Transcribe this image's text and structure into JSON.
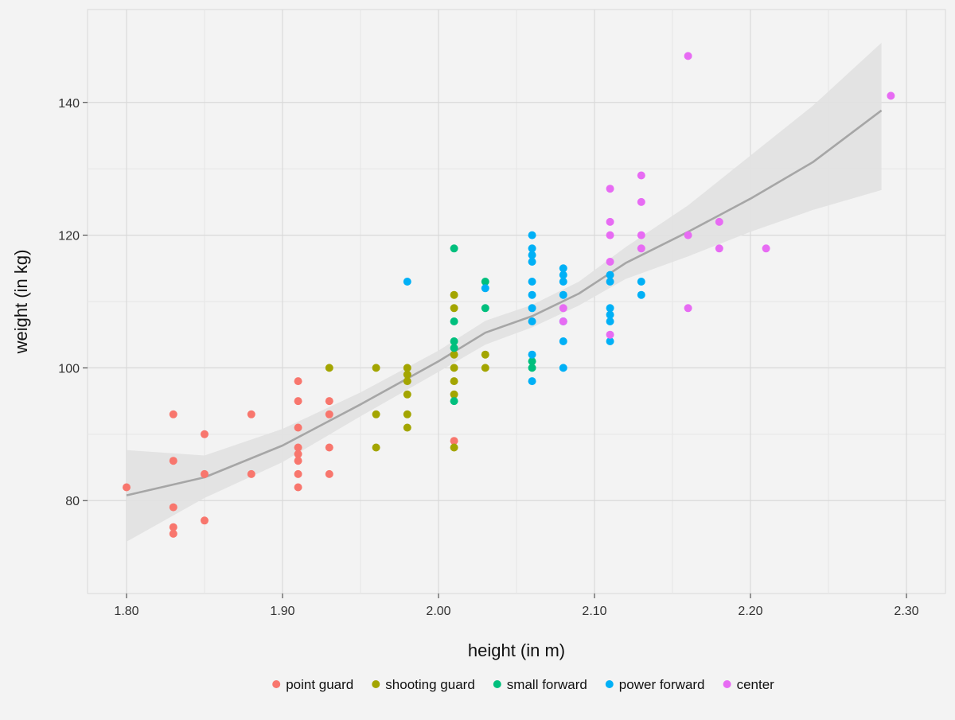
{
  "chart_data": {
    "type": "scatter",
    "title": "",
    "xlabel": "height (in m)",
    "ylabel": "weight (in kg)",
    "xlim": [
      1.775,
      2.325
    ],
    "ylim": [
      66,
      154
    ],
    "x_ticks": [
      {
        "value": 1.8,
        "label": "1.80"
      },
      {
        "value": 1.9,
        "label": "1.90"
      },
      {
        "value": 2.0,
        "label": "2.00"
      },
      {
        "value": 2.1,
        "label": "2.10"
      },
      {
        "value": 2.2,
        "label": "2.20"
      },
      {
        "value": 2.3,
        "label": "2.30"
      }
    ],
    "y_ticks": [
      {
        "value": 80,
        "label": "80"
      },
      {
        "value": 100,
        "label": "100"
      },
      {
        "value": 120,
        "label": "120"
      },
      {
        "value": 140,
        "label": "140"
      }
    ],
    "grid": true,
    "legend_position": "bottom",
    "series": [
      {
        "name": "point guard",
        "color": "#F8766D",
        "points": [
          [
            1.8,
            82
          ],
          [
            1.83,
            93
          ],
          [
            1.83,
            86
          ],
          [
            1.83,
            79
          ],
          [
            1.83,
            76
          ],
          [
            1.83,
            75
          ],
          [
            1.85,
            90
          ],
          [
            1.85,
            84
          ],
          [
            1.85,
            77
          ],
          [
            1.88,
            93
          ],
          [
            1.88,
            84
          ],
          [
            1.91,
            98
          ],
          [
            1.91,
            95
          ],
          [
            1.91,
            91
          ],
          [
            1.91,
            88
          ],
          [
            1.91,
            87
          ],
          [
            1.91,
            86
          ],
          [
            1.91,
            84
          ],
          [
            1.91,
            82
          ],
          [
            1.93,
            95
          ],
          [
            1.93,
            93
          ],
          [
            1.93,
            88
          ],
          [
            1.93,
            84
          ],
          [
            2.01,
            89
          ]
        ]
      },
      {
        "name": "shooting guard",
        "color": "#A3A500",
        "points": [
          [
            1.93,
            100
          ],
          [
            1.96,
            100
          ],
          [
            1.96,
            93
          ],
          [
            1.96,
            88
          ],
          [
            1.98,
            100
          ],
          [
            1.98,
            99
          ],
          [
            1.98,
            98
          ],
          [
            1.98,
            96
          ],
          [
            1.98,
            93
          ],
          [
            1.98,
            91
          ],
          [
            2.01,
            111
          ],
          [
            2.01,
            109
          ],
          [
            2.01,
            102
          ],
          [
            2.01,
            100
          ],
          [
            2.01,
            98
          ],
          [
            2.01,
            96
          ],
          [
            2.01,
            88
          ],
          [
            2.03,
            102
          ],
          [
            2.03,
            100
          ]
        ]
      },
      {
        "name": "small forward",
        "color": "#00BF7D",
        "points": [
          [
            2.01,
            118
          ],
          [
            2.01,
            107
          ],
          [
            2.01,
            104
          ],
          [
            2.01,
            103
          ],
          [
            2.01,
            95
          ],
          [
            2.03,
            113
          ],
          [
            2.03,
            109
          ],
          [
            2.06,
            101
          ],
          [
            2.06,
            100
          ]
        ]
      },
      {
        "name": "power forward",
        "color": "#00B0F6",
        "points": [
          [
            1.98,
            113
          ],
          [
            2.03,
            112
          ],
          [
            2.06,
            120
          ],
          [
            2.06,
            118
          ],
          [
            2.06,
            117
          ],
          [
            2.06,
            116
          ],
          [
            2.06,
            113
          ],
          [
            2.06,
            111
          ],
          [
            2.06,
            109
          ],
          [
            2.06,
            107
          ],
          [
            2.06,
            102
          ],
          [
            2.06,
            98
          ],
          [
            2.08,
            115
          ],
          [
            2.08,
            114
          ],
          [
            2.08,
            113
          ],
          [
            2.08,
            111
          ],
          [
            2.08,
            107
          ],
          [
            2.08,
            104
          ],
          [
            2.08,
            100
          ],
          [
            2.11,
            114
          ],
          [
            2.11,
            113
          ],
          [
            2.11,
            109
          ],
          [
            2.11,
            108
          ],
          [
            2.11,
            107
          ],
          [
            2.11,
            104
          ],
          [
            2.13,
            113
          ],
          [
            2.13,
            111
          ]
        ]
      },
      {
        "name": "center",
        "color": "#E76BF3",
        "points": [
          [
            2.08,
            109
          ],
          [
            2.08,
            107
          ],
          [
            2.11,
            127
          ],
          [
            2.11,
            122
          ],
          [
            2.11,
            120
          ],
          [
            2.11,
            116
          ],
          [
            2.11,
            105
          ],
          [
            2.13,
            129
          ],
          [
            2.13,
            125
          ],
          [
            2.13,
            120
          ],
          [
            2.13,
            118
          ],
          [
            2.16,
            147
          ],
          [
            2.16,
            120
          ],
          [
            2.16,
            109
          ],
          [
            2.18,
            122
          ],
          [
            2.18,
            118
          ],
          [
            2.21,
            118
          ],
          [
            2.29,
            141
          ]
        ]
      }
    ],
    "smooth_line": {
      "color": "#a6a6a6",
      "band_color": "#e1e1e1",
      "points": [
        {
          "x": 1.8,
          "y": 80.8,
          "lo": 73.8,
          "hi": 87.6
        },
        {
          "x": 1.85,
          "y": 83.5,
          "lo": 80.4,
          "hi": 86.8
        },
        {
          "x": 1.9,
          "y": 88.3,
          "lo": 85.8,
          "hi": 90.8
        },
        {
          "x": 1.95,
          "y": 94.5,
          "lo": 92.7,
          "hi": 96.3
        },
        {
          "x": 2.0,
          "y": 101.0,
          "lo": 99.4,
          "hi": 102.6
        },
        {
          "x": 2.03,
          "y": 105.3,
          "lo": 103.5,
          "hi": 107.1
        },
        {
          "x": 2.06,
          "y": 107.8,
          "lo": 106.1,
          "hi": 109.5
        },
        {
          "x": 2.09,
          "y": 111.2,
          "lo": 109.4,
          "hi": 113.0
        },
        {
          "x": 2.12,
          "y": 115.8,
          "lo": 113.4,
          "hi": 118.2
        },
        {
          "x": 2.16,
          "y": 120.5,
          "lo": 116.8,
          "hi": 124.5
        },
        {
          "x": 2.2,
          "y": 125.5,
          "lo": 120.5,
          "hi": 132.0
        },
        {
          "x": 2.24,
          "y": 131.0,
          "lo": 123.8,
          "hi": 139.5
        },
        {
          "x": 2.284,
          "y": 138.8,
          "lo": 126.8,
          "hi": 149.0
        }
      ]
    }
  }
}
